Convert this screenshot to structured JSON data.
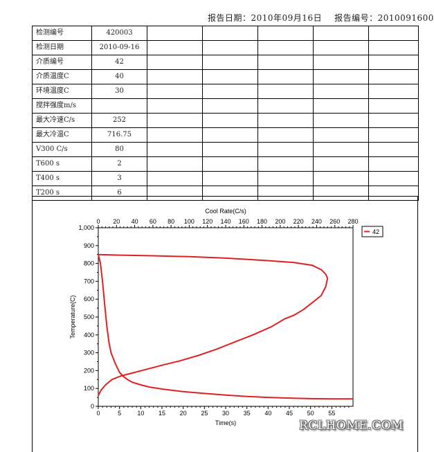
{
  "header": {
    "date_label": "报告日期：2010年09月16日",
    "number_label": "报告编号：2010091600"
  },
  "table": {
    "rows": [
      {
        "label": "检测编号",
        "value": "420003"
      },
      {
        "label": "检测日期",
        "value": "2010-09-16"
      },
      {
        "label": "介质编号",
        "value": "42"
      },
      {
        "label": "介质温度C",
        "value": "40"
      },
      {
        "label": "环境温度C",
        "value": "30"
      },
      {
        "label": "搅拌强度m/s",
        "value": ""
      },
      {
        "label": "最大冷速C/s",
        "value": "252"
      },
      {
        "label": "最大冷温C",
        "value": "716.75"
      },
      {
        "label": "V300 C/s",
        "value": "80"
      },
      {
        "label": "T600  s",
        "value": "2"
      },
      {
        "label": "T400  s",
        "value": "3"
      },
      {
        "label": "T200  s",
        "value": "6"
      }
    ]
  },
  "chart_data": {
    "type": "line",
    "title": "",
    "xlabel": "Time(s)",
    "x2label": "Cool Rate(C/s)",
    "ylabel": "Temperature(C)",
    "xlim": [
      0,
      60
    ],
    "x2lim": [
      0,
      280
    ],
    "ylim": [
      0,
      1000
    ],
    "xticks": [
      "0",
      "5",
      "10",
      "15",
      "20",
      "25",
      "30",
      "35",
      "40",
      "45",
      "50",
      "55"
    ],
    "x2ticks": [
      "0",
      "20",
      "40",
      "60",
      "80",
      "100",
      "120",
      "140",
      "160",
      "180",
      "200",
      "220",
      "240",
      "260",
      "280"
    ],
    "yticks": [
      "0",
      "100",
      "200",
      "300",
      "400",
      "500",
      "600",
      "700",
      "800",
      "900",
      "1,000"
    ],
    "legend": "top-right",
    "series": [
      {
        "name": "42",
        "color": "#e02020",
        "cooling_curve": {
          "x_axis": "Time(s)",
          "points": [
            [
              0,
              850
            ],
            [
              0.5,
              800
            ],
            [
              1,
              700
            ],
            [
              1.5,
              570
            ],
            [
              2,
              450
            ],
            [
              2.5,
              360
            ],
            [
              3,
              300
            ],
            [
              4,
              240
            ],
            [
              5,
              190
            ],
            [
              6,
              165
            ],
            [
              7,
              148
            ],
            [
              8,
              135
            ],
            [
              10,
              120
            ],
            [
              12,
              108
            ],
            [
              15,
              97
            ],
            [
              20,
              82
            ],
            [
              25,
              72
            ],
            [
              30,
              63
            ],
            [
              35,
              55
            ],
            [
              40,
              50
            ],
            [
              45,
              46
            ],
            [
              50,
              43
            ],
            [
              55,
              42
            ],
            [
              60,
              42
            ]
          ]
        },
        "cooling_rate_curve": {
          "x_axis": "Cool Rate(C/s)",
          "points": [
            [
              0,
              60
            ],
            [
              3,
              90
            ],
            [
              8,
              120
            ],
            [
              15,
              150
            ],
            [
              25,
              170
            ],
            [
              40,
              190
            ],
            [
              55,
              210
            ],
            [
              70,
              230
            ],
            [
              90,
              255
            ],
            [
              110,
              285
            ],
            [
              130,
              320
            ],
            [
              150,
              360
            ],
            [
              170,
              400
            ],
            [
              190,
              445
            ],
            [
              205,
              490
            ],
            [
              215,
              510
            ],
            [
              225,
              540
            ],
            [
              235,
              580
            ],
            [
              245,
              620
            ],
            [
              250,
              670
            ],
            [
              252,
              717
            ],
            [
              250,
              740
            ],
            [
              245,
              765
            ],
            [
              235,
              790
            ],
            [
              215,
              805
            ],
            [
              180,
              818
            ],
            [
              140,
              830
            ],
            [
              100,
              838
            ],
            [
              60,
              843
            ],
            [
              20,
              847
            ],
            [
              0,
              850
            ]
          ]
        }
      }
    ]
  },
  "watermark": "RCLHOME.COM"
}
